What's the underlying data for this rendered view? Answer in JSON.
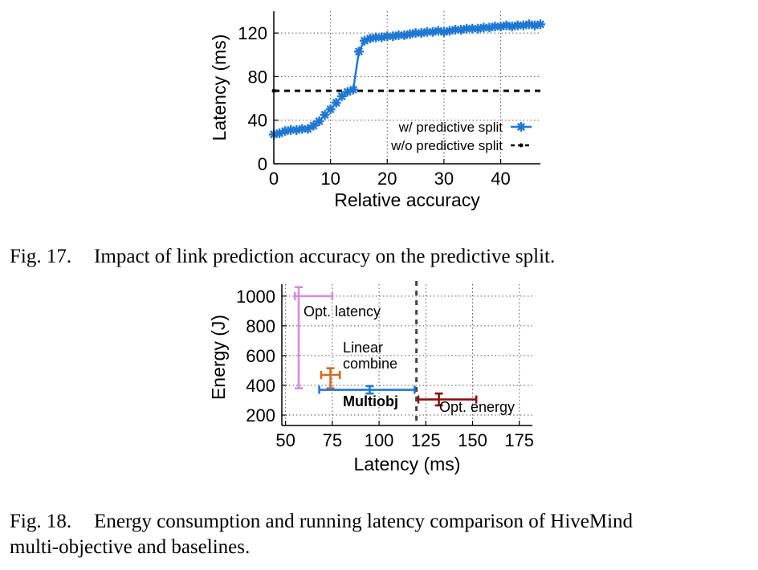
{
  "chart_data": [
    {
      "type": "line",
      "xlabel": "Relative accuracy",
      "ylabel": "Latency (ms)",
      "xlim": [
        0,
        47
      ],
      "ylim": [
        0,
        140
      ],
      "xticks": [
        "0",
        "10",
        "20",
        "30",
        "40"
      ],
      "yticks": [
        "0",
        "40",
        "80",
        "120"
      ],
      "grid": true,
      "legend_position": "bottom-right",
      "series": [
        {
          "name": "w/ predictive split",
          "color": "#1f77d4",
          "marker": "asterisk",
          "x": [
            0,
            1,
            2,
            3,
            4,
            5,
            6,
            7,
            8,
            9,
            10,
            11,
            12,
            13,
            14,
            15,
            16,
            17,
            18,
            19,
            20,
            21,
            22,
            23,
            24,
            25,
            26,
            27,
            28,
            29,
            30,
            31,
            32,
            33,
            34,
            35,
            36,
            37,
            38,
            39,
            40,
            41,
            42,
            43,
            44,
            45,
            46,
            47
          ],
          "y": [
            27,
            28,
            30,
            31,
            31,
            32,
            32,
            35,
            39,
            45,
            50,
            56,
            62,
            66,
            68,
            103,
            113,
            115,
            116,
            116,
            117,
            117,
            118,
            118,
            119,
            120,
            120,
            121,
            121,
            122,
            121,
            122,
            123,
            123,
            124,
            124,
            124,
            125,
            125,
            126,
            126,
            127,
            126,
            127,
            127,
            128,
            127,
            128
          ]
        },
        {
          "name": "w/o predictive split",
          "color": "#000000",
          "style": "dashed",
          "x": [
            0,
            47
          ],
          "y": [
            67,
            67
          ]
        }
      ]
    },
    {
      "type": "scatter",
      "xlabel": "Latency (ms)",
      "ylabel": "Energy (J)",
      "xlim": [
        48,
        182
      ],
      "ylim": [
        130,
        1080
      ],
      "xticks": [
        "50",
        "75",
        "100",
        "125",
        "150",
        "175"
      ],
      "yticks": [
        "200",
        "400",
        "600",
        "800",
        "1000"
      ],
      "grid": true,
      "vline": {
        "x": 120,
        "style": "dashed",
        "color": "#444444"
      },
      "points": [
        {
          "label": "Opt. latency",
          "color": "#d98be0",
          "x": 57,
          "y": 1000,
          "xerr": [
            55,
            75
          ],
          "yerr": [
            380,
            1060
          ],
          "label_bold": false
        },
        {
          "label": "Linear combine",
          "color": "#d2691e",
          "x": 74,
          "y": 470,
          "xerr": [
            69,
            79
          ],
          "yerr": [
            380,
            515
          ],
          "label_bold": false
        },
        {
          "label": "Multiobj",
          "color": "#1f77d4",
          "x": 95,
          "y": 370,
          "xerr": [
            68,
            119
          ],
          "yerr": [
            345,
            395
          ],
          "label_bold": true
        },
        {
          "label": "Opt. energy",
          "color": "#8b1010",
          "x": 132,
          "y": 305,
          "xerr": [
            121,
            152
          ],
          "yerr": [
            265,
            345
          ],
          "label_bold": false
        }
      ]
    }
  ],
  "captions": {
    "fig17_label": "Fig. 17.",
    "fig17_text": "Impact of link prediction accuracy on the predictive split.",
    "fig18_label": "Fig. 18.",
    "fig18_text_line1": "Energy consumption and running latency comparison of HiveMind",
    "fig18_text_line2": "multi-objective and baselines."
  }
}
